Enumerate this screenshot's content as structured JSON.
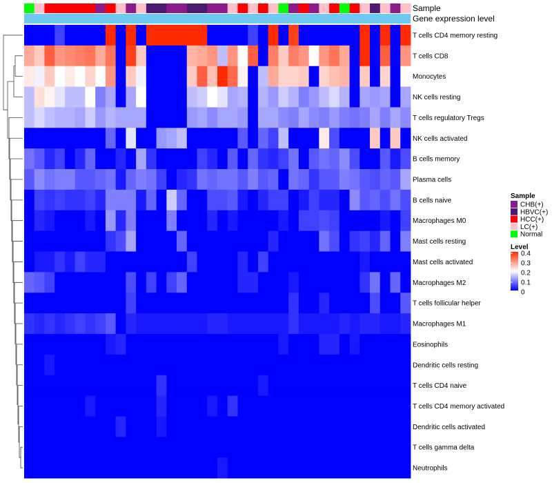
{
  "chart_data": {
    "type": "heatmap",
    "title": "",
    "annotation_tracks": [
      "Sample",
      "Gene expression level"
    ],
    "rows": [
      "T cells CD4 memory resting",
      "T cells CD8",
      "Monocytes",
      "NK cells resting",
      "T cells regulatory  Tregs",
      "NK cells activated",
      "B cells memory",
      "Plasma cells",
      "B cells naive",
      "Macrophages M0",
      "Mast cells resting",
      "Mast cells activated",
      "Macrophages M2",
      "T cells follicular helper",
      "Macrophages M1",
      "Eosinophils",
      "Dendritic cells resting",
      "T cells CD4 naive",
      "T cells CD4 memory activated",
      "Dendritic cells activated",
      "T cells gamma delta",
      "Neutrophils"
    ],
    "sample_groups": [
      "Normal",
      "LC(+)",
      "HCC(+)",
      "HCC(+)",
      "HCC(+)",
      "HCC(+)",
      "HCC(+)",
      "CHB(+)",
      "HCC(+)",
      "LC(+)",
      "CHB(+)",
      "LC(+)",
      "HBVC(+)",
      "HBVC(+)",
      "CHB(+)",
      "CHB(+)",
      "HBVC(+)",
      "HBVC(+)",
      "CHB(+)",
      "CHB(+)",
      "LC(+)",
      "HCC(+)",
      "LC(+)",
      "HCC(+)",
      "LC(+)",
      "Normal",
      "CHB(+)",
      "HCC(+)",
      "CHB(+)",
      "LC(+)",
      "HCC(+)",
      "Normal",
      "HCC(+)",
      "LC(+)",
      "HBVC(+)",
      "LC(+)",
      "CHB(+)",
      "LC(+)"
    ],
    "values": [
      [
        0.0,
        0.0,
        0.0,
        0.05,
        0.0,
        0.0,
        0.0,
        0.0,
        0.4,
        0.0,
        0.4,
        0.0,
        0.4,
        0.4,
        0.4,
        0.4,
        0.4,
        0.4,
        0.0,
        0.0,
        0.0,
        0.0,
        0.05,
        0.0,
        0.4,
        0.0,
        0.38,
        0.0,
        0.0,
        0.0,
        0.0,
        0.0,
        0.0,
        0.4,
        0.0,
        0.4,
        0.0,
        0.4
      ],
      [
        0.28,
        0.25,
        0.35,
        0.3,
        0.31,
        0.32,
        0.33,
        0.28,
        0.33,
        0.0,
        0.38,
        0.25,
        0.0,
        0.0,
        0.0,
        0.0,
        0.27,
        0.28,
        0.3,
        0.15,
        0.3,
        0.2,
        0.35,
        0.0,
        0.32,
        0.25,
        0.32,
        0.3,
        0.2,
        0.3,
        0.33,
        0.28,
        0.0,
        0.4,
        0.0,
        0.35,
        0.0,
        0.3
      ],
      [
        0.22,
        0.19,
        0.25,
        0.2,
        0.22,
        0.2,
        0.24,
        0.2,
        0.3,
        0.0,
        0.25,
        0.19,
        0.0,
        0.0,
        0.0,
        0.0,
        0.25,
        0.35,
        0.26,
        0.4,
        0.34,
        0.21,
        0.0,
        0.15,
        0.28,
        0.24,
        0.24,
        0.25,
        0.0,
        0.24,
        0.26,
        0.27,
        0.0,
        0.25,
        0.0,
        0.24,
        0.0,
        0.2
      ],
      [
        0.15,
        0.23,
        0.21,
        0.18,
        0.15,
        0.15,
        0.2,
        0.1,
        0.13,
        0.0,
        0.13,
        0.2,
        0.0,
        0.0,
        0.0,
        0.0,
        0.15,
        0.16,
        0.2,
        0.18,
        0.13,
        0.14,
        0.0,
        0.14,
        0.12,
        0.16,
        0.14,
        0.1,
        0.12,
        0.15,
        0.17,
        0.14,
        0.0,
        0.13,
        0.12,
        0.13,
        0.0,
        0.13
      ],
      [
        0.15,
        0.17,
        0.15,
        0.14,
        0.14,
        0.13,
        0.16,
        0.12,
        0.14,
        0.13,
        0.13,
        0.13,
        0.0,
        0.0,
        0.0,
        0.0,
        0.12,
        0.13,
        0.11,
        0.13,
        0.13,
        0.12,
        0.0,
        0.13,
        0.13,
        0.11,
        0.1,
        0.13,
        0.11,
        0.1,
        0.12,
        0.1,
        0.09,
        0.1,
        0.13,
        0.1,
        0.13,
        0.11
      ],
      [
        0.0,
        0.0,
        0.0,
        0.0,
        0.0,
        0.0,
        0.0,
        0.0,
        0.08,
        0.0,
        0.18,
        0.0,
        0.0,
        0.12,
        0.13,
        0.15,
        0.0,
        0.0,
        0.0,
        0.0,
        0.0,
        0.07,
        0.0,
        0.08,
        0.05,
        0.15,
        0.0,
        0.0,
        0.0,
        0.22,
        0.06,
        0.0,
        0.0,
        0.0,
        0.25,
        0.0,
        0.25,
        0.0
      ],
      [
        0.09,
        0.07,
        0.03,
        0.05,
        0.0,
        0.03,
        0.08,
        0.0,
        0.0,
        0.03,
        0.0,
        0.13,
        0.04,
        0.0,
        0.0,
        0.0,
        0.0,
        0.05,
        0.03,
        0.0,
        0.07,
        0.0,
        0.08,
        0.04,
        0.03,
        0.05,
        0.09,
        0.0,
        0.07,
        0.09,
        0.08,
        0.11,
        0.06,
        0.0,
        0.0,
        0.07,
        0.02,
        0.06
      ],
      [
        0.07,
        0.11,
        0.09,
        0.1,
        0.1,
        0.07,
        0.07,
        0.08,
        0.09,
        0.02,
        0.08,
        0.1,
        0.09,
        0.05,
        0.0,
        0.03,
        0.04,
        0.09,
        0.08,
        0.09,
        0.09,
        0.07,
        0.1,
        0.07,
        0.08,
        0.0,
        0.09,
        0.08,
        0.04,
        0.07,
        0.07,
        0.1,
        0.09,
        0.07,
        0.06,
        0.08,
        0.07,
        0.13
      ],
      [
        0.0,
        0.05,
        0.04,
        0.05,
        0.04,
        0.04,
        0.05,
        0.03,
        0.1,
        0.1,
        0.1,
        0.02,
        0.08,
        0.0,
        0.16,
        0.08,
        0.0,
        0.0,
        0.06,
        0.06,
        0.07,
        0.02,
        0.0,
        0.03,
        0.05,
        0.05,
        0.0,
        0.02,
        0.05,
        0.03,
        0.03,
        0.0,
        0.11,
        0.07,
        0.08,
        0.06,
        0.09,
        0.06
      ],
      [
        0.0,
        0.03,
        0.02,
        0.0,
        0.0,
        0.0,
        0.02,
        0.0,
        0.12,
        0.03,
        0.1,
        0.0,
        0.0,
        0.0,
        0.1,
        0.0,
        0.0,
        0.0,
        0.03,
        0.0,
        0.02,
        0.0,
        0.0,
        0.0,
        0.0,
        0.02,
        0.0,
        0.05,
        0.05,
        0.06,
        0.05,
        0.0,
        0.0,
        0.0,
        0.0,
        0.02,
        0.0,
        0.05
      ],
      [
        0.0,
        0.0,
        0.0,
        0.0,
        0.0,
        0.0,
        0.0,
        0.0,
        0.04,
        0.06,
        0.13,
        0.0,
        0.0,
        0.0,
        0.0,
        0.08,
        0.0,
        0.0,
        0.0,
        0.0,
        0.0,
        0.0,
        0.0,
        0.0,
        0.03,
        0.0,
        0.0,
        0.0,
        0.0,
        0.09,
        0.06,
        0.0,
        0.04,
        0.05,
        0.03,
        0.08,
        0.0,
        0.1
      ],
      [
        0.0,
        0.02,
        0.02,
        0.04,
        0.02,
        0.05,
        0.03,
        0.03,
        0.0,
        0.0,
        0.0,
        0.0,
        0.0,
        0.0,
        0.0,
        0.0,
        0.05,
        0.0,
        0.0,
        0.0,
        0.0,
        0.03,
        0.0,
        0.05,
        0.0,
        0.0,
        0.0,
        0.0,
        0.0,
        0.0,
        0.0,
        0.0,
        0.0,
        0.02,
        0.0,
        0.0,
        0.0,
        0.0
      ],
      [
        0.08,
        0.07,
        0.05,
        0.0,
        0.0,
        0.0,
        0.0,
        0.0,
        0.0,
        0.0,
        0.06,
        0.0,
        0.05,
        0.0,
        0.05,
        0.08,
        0.0,
        0.0,
        0.0,
        0.0,
        0.0,
        0.03,
        0.03,
        0.0,
        0.0,
        0.0,
        0.02,
        0.0,
        0.0,
        0.0,
        0.0,
        0.0,
        0.0,
        0.04,
        0.09,
        0.0,
        0.08,
        0.0
      ],
      [
        0.0,
        0.0,
        0.0,
        0.0,
        0.0,
        0.0,
        0.0,
        0.0,
        0.0,
        0.0,
        0.05,
        0.0,
        0.0,
        0.0,
        0.0,
        0.0,
        0.0,
        0.0,
        0.0,
        0.0,
        0.0,
        0.0,
        0.0,
        0.0,
        0.0,
        0.0,
        0.04,
        0.0,
        0.0,
        0.03,
        0.0,
        0.0,
        0.0,
        0.0,
        0.06,
        0.0,
        0.0,
        0.07
      ],
      [
        0.04,
        0.03,
        0.04,
        0.03,
        0.04,
        0.05,
        0.04,
        0.05,
        0.07,
        0.0,
        0.03,
        0.02,
        0.02,
        0.02,
        0.02,
        0.02,
        0.02,
        0.02,
        0.03,
        0.03,
        0.02,
        0.02,
        0.02,
        0.02,
        0.02,
        0.02,
        0.04,
        0.02,
        0.02,
        0.02,
        0.02,
        0.03,
        0.02,
        0.03,
        0.03,
        0.02,
        0.02,
        0.03
      ],
      [
        0.0,
        0.0,
        0.0,
        0.0,
        0.0,
        0.0,
        0.0,
        0.0,
        0.02,
        0.03,
        0.0,
        0.0,
        0.0,
        0.0,
        0.0,
        0.0,
        0.0,
        0.0,
        0.0,
        0.0,
        0.0,
        0.0,
        0.0,
        0.0,
        0.0,
        0.02,
        0.0,
        0.0,
        0.0,
        0.03,
        0.03,
        0.0,
        0.02,
        0.0,
        0.0,
        0.0,
        0.0,
        0.0
      ],
      [
        0.0,
        0.0,
        0.02,
        0.0,
        0.0,
        0.0,
        0.0,
        0.0,
        0.0,
        0.0,
        0.0,
        0.0,
        0.0,
        0.0,
        0.0,
        0.0,
        0.0,
        0.0,
        0.0,
        0.0,
        0.0,
        0.0,
        0.0,
        0.0,
        0.0,
        0.0,
        0.0,
        0.0,
        0.0,
        0.0,
        0.0,
        0.0,
        0.0,
        0.0,
        0.0,
        0.0,
        0.0,
        0.0
      ],
      [
        0.0,
        0.0,
        0.0,
        0.0,
        0.0,
        0.0,
        0.0,
        0.0,
        0.0,
        0.0,
        0.0,
        0.0,
        0.0,
        0.04,
        0.0,
        0.0,
        0.0,
        0.0,
        0.0,
        0.0,
        0.0,
        0.0,
        0.0,
        0.02,
        0.0,
        0.0,
        0.0,
        0.0,
        0.0,
        0.0,
        0.0,
        0.0,
        0.0,
        0.0,
        0.0,
        0.0,
        0.0,
        0.0
      ],
      [
        0.0,
        0.0,
        0.0,
        0.0,
        0.0,
        0.0,
        0.02,
        0.0,
        0.0,
        0.0,
        0.0,
        0.0,
        0.0,
        0.03,
        0.0,
        0.0,
        0.0,
        0.0,
        0.02,
        0.0,
        0.04,
        0.0,
        0.0,
        0.0,
        0.0,
        0.0,
        0.0,
        0.0,
        0.0,
        0.0,
        0.0,
        0.0,
        0.0,
        0.0,
        0.0,
        0.0,
        0.0,
        0.0
      ],
      [
        0.0,
        0.0,
        0.0,
        0.0,
        0.0,
        0.0,
        0.0,
        0.0,
        0.0,
        0.03,
        0.0,
        0.0,
        0.0,
        0.02,
        0.0,
        0.0,
        0.0,
        0.0,
        0.0,
        0.0,
        0.0,
        0.0,
        0.0,
        0.0,
        0.0,
        0.0,
        0.0,
        0.0,
        0.0,
        0.0,
        0.0,
        0.0,
        0.0,
        0.0,
        0.0,
        0.0,
        0.0,
        0.0
      ],
      [
        0.0,
        0.0,
        0.0,
        0.0,
        0.0,
        0.0,
        0.0,
        0.0,
        0.0,
        0.0,
        0.0,
        0.0,
        0.0,
        0.0,
        0.0,
        0.0,
        0.0,
        0.0,
        0.0,
        0.0,
        0.0,
        0.0,
        0.0,
        0.0,
        0.0,
        0.0,
        0.0,
        0.0,
        0.0,
        0.0,
        0.0,
        0.0,
        0.0,
        0.0,
        0.0,
        0.0,
        0.0,
        0.0
      ],
      [
        0.0,
        0.0,
        0.0,
        0.0,
        0.0,
        0.0,
        0.0,
        0.0,
        0.0,
        0.0,
        0.0,
        0.0,
        0.0,
        0.0,
        0.0,
        0.0,
        0.0,
        0.0,
        0.0,
        0.02,
        0.0,
        0.0,
        0.0,
        0.0,
        0.0,
        0.0,
        0.0,
        0.0,
        0.0,
        0.0,
        0.0,
        0.0,
        0.0,
        0.0,
        0.0,
        0.0,
        0.0,
        0.0
      ]
    ],
    "legend_sample": {
      "title": "Sample",
      "entries": [
        {
          "label": "CHB(+)",
          "color": "#8b1a8b"
        },
        {
          "label": "HBVC(+)",
          "color": "#4b1a73"
        },
        {
          "label": "HCC(+)",
          "color": "#ff0000"
        },
        {
          "label": "LC(+)",
          "color": "#ffc0cb"
        },
        {
          "label": "Normal",
          "color": "#00ff00"
        }
      ]
    },
    "legend_level": {
      "title": "Level",
      "ticks": [
        "0.4",
        "0.3",
        "0.2",
        "0.1",
        "0"
      ],
      "range": [
        0,
        0.4
      ],
      "colors": [
        "#0000ff",
        "#ffffff",
        "#ff2a00"
      ]
    },
    "expression_track_color": "#6ec8f0"
  }
}
